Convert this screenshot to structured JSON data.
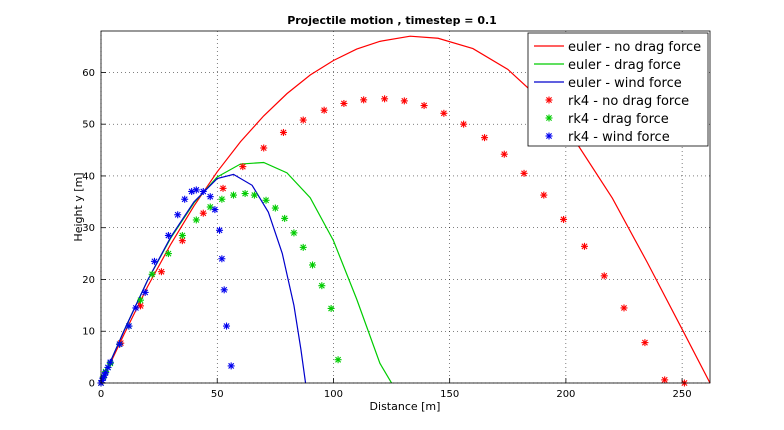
{
  "chart_data": {
    "type": "line",
    "title": "Projectile motion , timestep = 0.1",
    "xlabel": "Distance [m]",
    "ylabel": "Height y [m]",
    "xlim": [
      0,
      262
    ],
    "ylim": [
      0,
      68
    ],
    "xticks": [
      0,
      50,
      100,
      150,
      200,
      250
    ],
    "yticks": [
      0,
      10,
      20,
      30,
      40,
      50,
      60
    ],
    "grid": true,
    "legend_placement": "top-right",
    "series": [
      {
        "name": "euler - no drag force",
        "style": "line",
        "color": "#ff0000",
        "x": [
          0,
          10,
          20,
          30,
          40,
          50,
          60,
          70,
          80,
          90,
          100,
          110,
          120,
          133,
          145,
          160,
          175,
          190,
          205,
          220,
          235,
          250,
          262
        ],
        "y": [
          0,
          9.5,
          18.6,
          26.8,
          34.2,
          40.8,
          46.6,
          51.6,
          55.9,
          59.5,
          62.3,
          64.5,
          66.0,
          67.0,
          66.6,
          64.6,
          60.6,
          54.4,
          46.1,
          35.7,
          23.3,
          10.4,
          0
        ]
      },
      {
        "name": "euler - drag force",
        "style": "line",
        "color": "#00cc00",
        "x": [
          0,
          10,
          20,
          30,
          40,
          50,
          60,
          70,
          80,
          90,
          100,
          110,
          120,
          125
        ],
        "y": [
          0,
          10.2,
          19.8,
          28.0,
          34.8,
          39.8,
          42.3,
          42.6,
          40.6,
          35.8,
          27.5,
          16.2,
          3.8,
          0
        ]
      },
      {
        "name": "euler - wind force",
        "style": "line",
        "color": "#0000cc",
        "x": [
          0,
          10,
          20,
          30,
          40,
          50,
          57,
          65,
          72,
          78,
          83,
          86,
          88
        ],
        "y": [
          0,
          10.2,
          19.8,
          28.2,
          35.0,
          39.5,
          40.3,
          38.2,
          33.0,
          25.0,
          15.0,
          6.5,
          0
        ]
      },
      {
        "name": "rk4 - no drag force",
        "style": "marker",
        "color": "#ff0000",
        "x": [
          0,
          8.5,
          17,
          26,
          35,
          44,
          52.5,
          61,
          70,
          78.5,
          87,
          96,
          104.5,
          113,
          122,
          130.5,
          139,
          147.5,
          156,
          165,
          173.5,
          182,
          190.5,
          199,
          208,
          216.5,
          225,
          234,
          242.5,
          251
        ],
        "y": [
          0,
          7.7,
          14.9,
          21.5,
          27.5,
          32.8,
          37.6,
          41.8,
          45.4,
          48.4,
          50.8,
          52.7,
          54.0,
          54.7,
          54.9,
          54.5,
          53.6,
          52.1,
          50.0,
          47.4,
          44.2,
          40.5,
          36.3,
          31.6,
          26.4,
          20.7,
          14.5,
          7.8,
          0.6,
          0
        ]
      },
      {
        "name": "rk4 - drag force",
        "style": "marker",
        "color": "#00cc00",
        "x": [
          0,
          1,
          2,
          3,
          4,
          8,
          12,
          17,
          22,
          29,
          35,
          41,
          47,
          52,
          57,
          62,
          66,
          71,
          75,
          79,
          83,
          87,
          91,
          95,
          99,
          102
        ],
        "y": [
          0,
          1.2,
          2.2,
          3.0,
          3.8,
          7.5,
          11.0,
          16.0,
          21.0,
          25.0,
          28.5,
          31.5,
          34.0,
          35.5,
          36.3,
          36.6,
          36.3,
          35.3,
          33.8,
          31.8,
          29.0,
          26.2,
          22.8,
          18.8,
          14.4,
          4.5
        ]
      },
      {
        "name": "rk4 - wind force",
        "style": "marker",
        "color": "#0000ee",
        "x": [
          0,
          0.5,
          1,
          1.5,
          2,
          3,
          4,
          8,
          12,
          15,
          19,
          23,
          29,
          33,
          36,
          39,
          41,
          44,
          47,
          49,
          51,
          52,
          53,
          54,
          56
        ],
        "y": [
          0,
          0.5,
          1.0,
          1.5,
          2.0,
          3.0,
          4.0,
          7.5,
          11.0,
          14.5,
          17.5,
          23.5,
          28.5,
          32.5,
          35.5,
          37.0,
          37.3,
          37.0,
          36.0,
          33.5,
          29.5,
          24.0,
          18.0,
          11.0,
          3.3
        ]
      }
    ]
  }
}
